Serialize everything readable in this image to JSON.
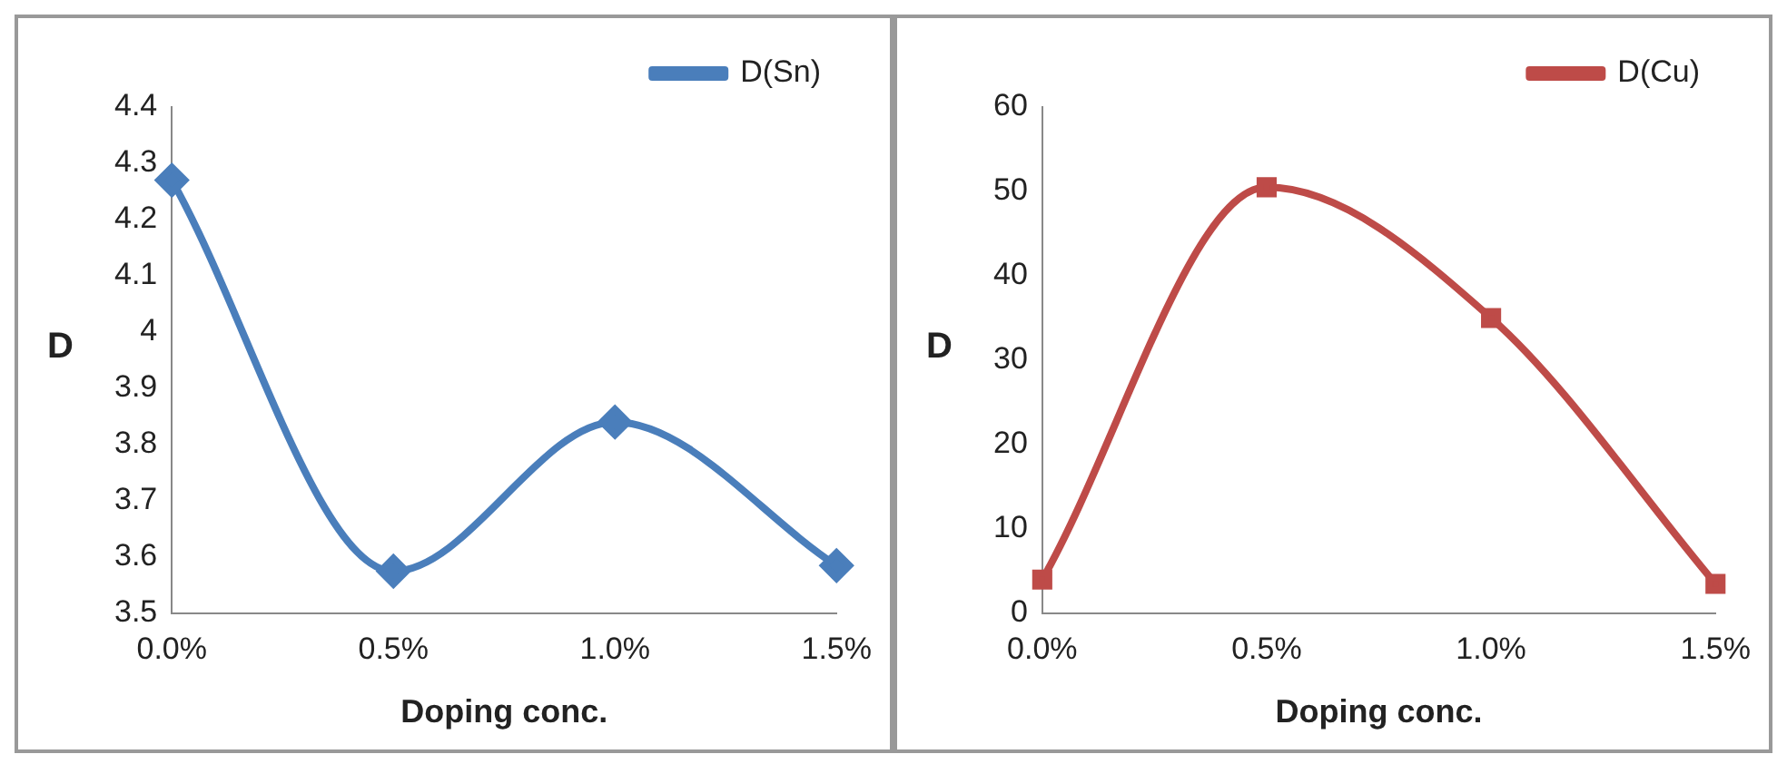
{
  "chart_data": [
    {
      "type": "line",
      "xlabel": "Doping conc.",
      "ylabel": "D",
      "categories": [
        "0.0%",
        "0.5%",
        "1.0%",
        "1.5%"
      ],
      "series": [
        {
          "name": "D(Sn)",
          "color": "#4a7ebb",
          "values": [
            4.27,
            3.575,
            3.84,
            3.585
          ]
        }
      ],
      "ylim": [
        3.5,
        4.4
      ],
      "yticks": [
        3.5,
        3.6,
        3.7,
        3.8,
        3.9,
        4,
        4.1,
        4.2,
        4.3,
        4.4
      ],
      "grid": false,
      "legend": "top right",
      "marker": "diamond"
    },
    {
      "type": "line",
      "xlabel": "Doping conc.",
      "ylabel": "D",
      "categories": [
        "0.0%",
        "0.5%",
        "1.0%",
        "1.5%"
      ],
      "series": [
        {
          "name": "D(Cu)",
          "color": "#be4b48",
          "values": [
            4,
            50.5,
            35,
            3.5
          ]
        }
      ],
      "ylim": [
        0,
        60
      ],
      "yticks": [
        0,
        10,
        20,
        30,
        40,
        50,
        60
      ],
      "grid": false,
      "legend": "top right",
      "marker": "square"
    }
  ]
}
